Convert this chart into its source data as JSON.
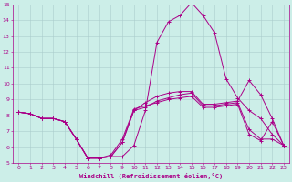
{
  "xlabel": "Windchill (Refroidissement éolien,°C)",
  "xlim": [
    -0.5,
    23.5
  ],
  "ylim": [
    5,
    15
  ],
  "yticks": [
    5,
    6,
    7,
    8,
    9,
    10,
    11,
    12,
    13,
    14,
    15
  ],
  "xticks": [
    0,
    1,
    2,
    3,
    4,
    5,
    6,
    7,
    8,
    9,
    10,
    11,
    12,
    13,
    14,
    15,
    16,
    17,
    18,
    19,
    20,
    21,
    22,
    23
  ],
  "background_color": "#cceee8",
  "grid_color": "#aacccc",
  "line_color": "#aa0088",
  "series": [
    [
      8.2,
      8.1,
      7.8,
      7.8,
      7.6,
      6.5,
      5.3,
      5.3,
      5.4,
      5.4,
      6.1,
      8.3,
      12.6,
      13.9,
      14.3,
      15.1,
      14.3,
      13.2,
      10.3,
      9.1,
      8.3,
      7.8,
      6.8,
      6.1
    ],
    [
      8.2,
      8.1,
      7.8,
      7.8,
      7.6,
      6.5,
      5.3,
      5.3,
      5.4,
      6.3,
      8.3,
      8.8,
      9.2,
      9.4,
      9.5,
      9.5,
      8.7,
      8.7,
      8.8,
      8.9,
      10.2,
      9.3,
      7.8,
      6.1
    ],
    [
      8.2,
      8.1,
      7.8,
      7.8,
      7.6,
      6.5,
      5.3,
      5.3,
      5.4,
      6.3,
      8.3,
      8.5,
      8.9,
      9.1,
      9.3,
      9.4,
      8.6,
      8.6,
      8.7,
      8.8,
      7.1,
      6.5,
      6.5,
      6.1
    ],
    [
      8.2,
      8.1,
      7.8,
      7.8,
      7.6,
      6.5,
      5.3,
      5.3,
      5.5,
      6.5,
      8.4,
      8.6,
      8.8,
      9.0,
      9.1,
      9.2,
      8.5,
      8.5,
      8.6,
      8.7,
      6.8,
      6.4,
      7.6,
      6.1
    ]
  ],
  "figsize": [
    3.2,
    2.0
  ],
  "dpi": 100,
  "tick_labelsize": 4.5,
  "xlabel_fontsize": 5.0,
  "line_width": 0.7,
  "marker_size": 2.5
}
